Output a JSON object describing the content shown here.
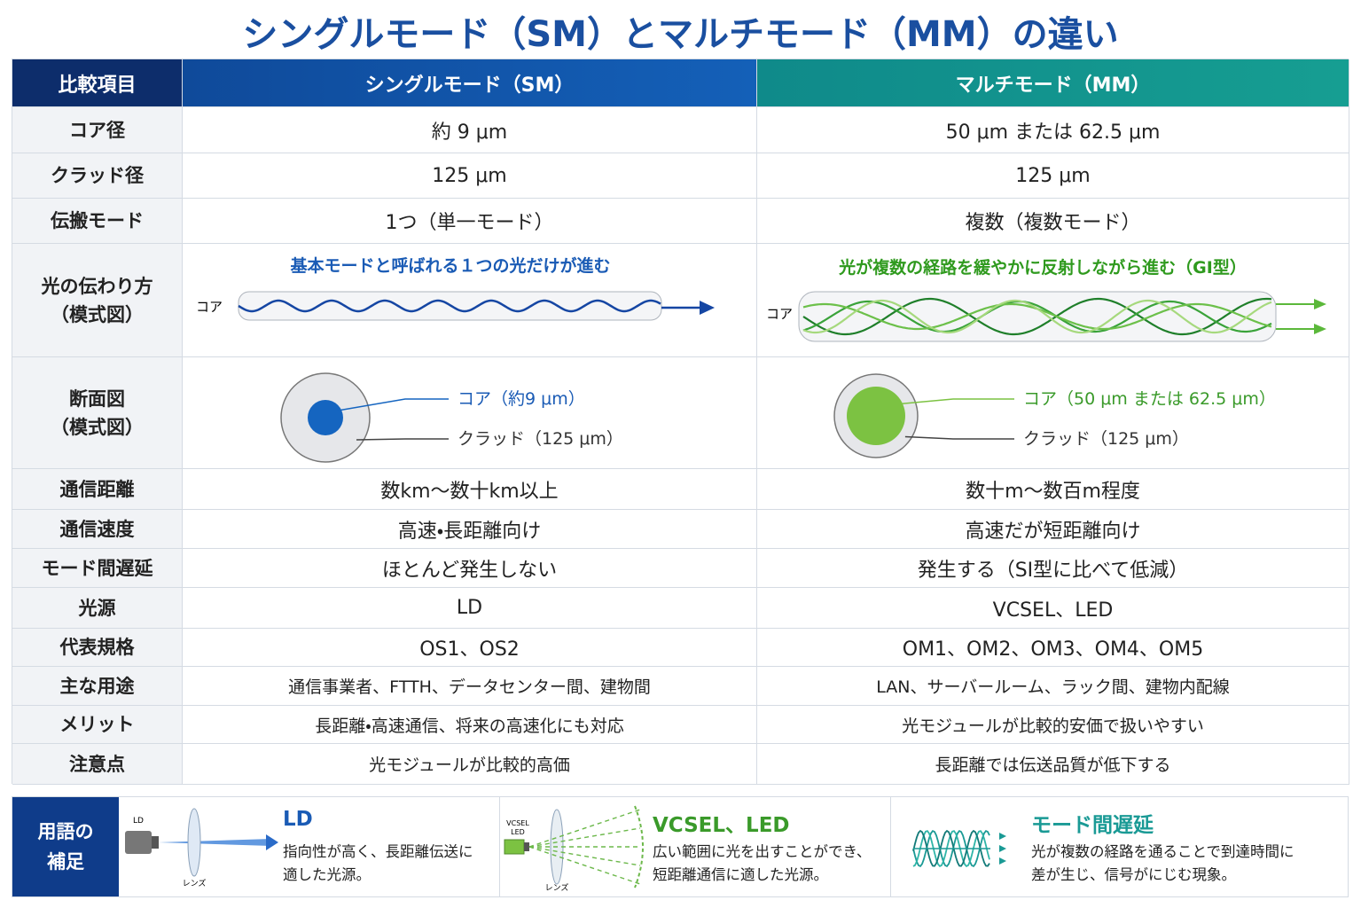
{
  "title": "シングルモード（SM）とマルチモード（MM）の違い",
  "table": {
    "header": [
      "比較項目",
      "シングルモード（SM）",
      "マルチモード（MM）"
    ],
    "rows": [
      {
        "label": [
          "コア径"
        ],
        "sm": "約 9 μm",
        "mm": "50 μm または 62.5 μm"
      },
      {
        "label": [
          "クラッド径"
        ],
        "sm": "125 μm",
        "mm": "125 μm"
      },
      {
        "label": [
          "伝搬モード"
        ],
        "sm": "1つ（単一モード）",
        "mm": "複数（複数モード）"
      },
      {
        "label": [
          "光の伝わり方",
          "（模式図）"
        ],
        "sm": {
          "caption": "基本モードと呼ばれる１つの光だけが進む",
          "core_label": "コア"
        },
        "mm": {
          "caption": "光が複数の経路を緩やかに反射しながら進む（GI型）",
          "core_label": "コア"
        }
      },
      {
        "label": [
          "断面図",
          "（模式図）"
        ],
        "sm": {
          "core": "コア（約9 μm）",
          "cladding": "クラッド（125 μm）"
        },
        "mm": {
          "core": "コア（50 μm または 62.5 μm）",
          "cladding": "クラッド（125 μm）"
        }
      },
      {
        "label": [
          "通信距離"
        ],
        "sm": "数km～数十km以上",
        "mm": "数十m～数百m程度"
      },
      {
        "label": [
          "通信速度"
        ],
        "sm": "高速・長距離向け",
        "mm": "高速だが短距離向け"
      },
      {
        "label": [
          "モード間遅延"
        ],
        "sm": "ほとんど発生しない",
        "mm": "発生する（SI型に比べて低減）"
      },
      {
        "label": [
          "光源"
        ],
        "sm": "LD",
        "mm": "VCSEL、LED"
      },
      {
        "label": [
          "代表規格"
        ],
        "sm": "OS1、OS2",
        "mm": "OM1、OM2、OM3、OM4、OM5"
      },
      {
        "label": [
          "主な用途"
        ],
        "sm": "通信事業者、FTTH、データセンター間、建物間",
        "mm": "LAN、サーバールーム、ラック間、建物内配線"
      },
      {
        "label": [
          "メリット"
        ],
        "sm": "長距離・高速通信、将来の高速化にも対応",
        "mm": "光モジュールが比較的安価で扱いやすい"
      },
      {
        "label": [
          "注意点"
        ],
        "sm": "光モジュールが比較的高価",
        "mm": "長距離では伝送品質が低下する"
      }
    ]
  },
  "glossary": {
    "title": [
      "用語の",
      "補足"
    ],
    "items": [
      {
        "heading": "LD",
        "text": [
          "指向性が高く、長距離伝送に",
          "適した光源。"
        ],
        "icon_labels": [
          "LD",
          "レンズ"
        ]
      },
      {
        "heading": "VCSEL、LED",
        "text": [
          "広い範囲に光を出すことができ、",
          "短距離通信に適した光源。"
        ],
        "icon_labels": [
          "VCSEL",
          "LED",
          "レンズ"
        ]
      },
      {
        "heading": "モード間遅延",
        "text": [
          "光が複数の経路を通ることで到達時間に",
          "差が生じ、信号がにじむ現象。"
        ]
      }
    ]
  }
}
